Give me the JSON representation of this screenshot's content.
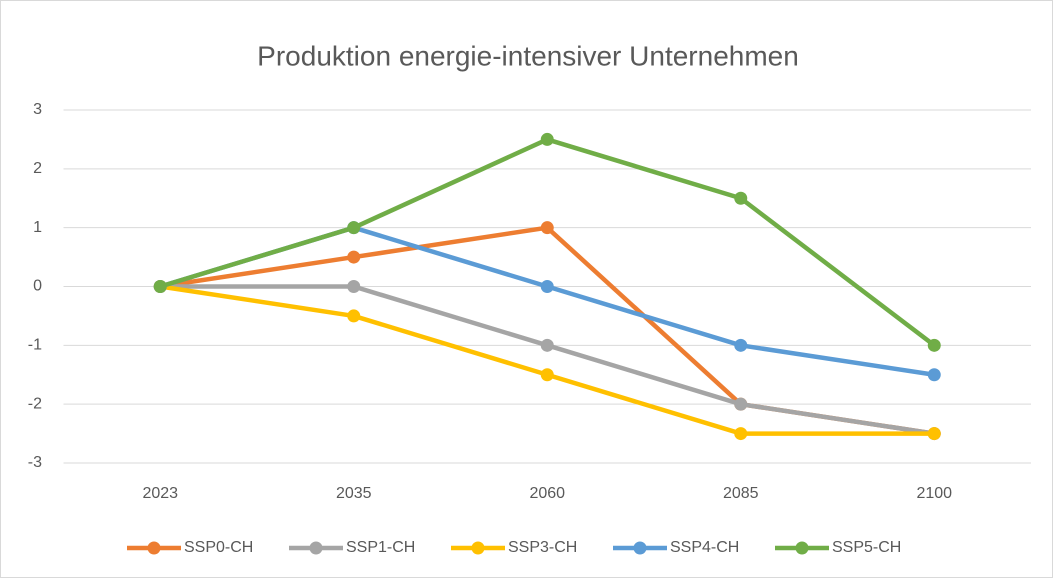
{
  "chart_data": {
    "type": "line",
    "title": "Produktion energie-intensiver Unternehmen",
    "categories": [
      "2023",
      "2035",
      "2060",
      "2085",
      "2100"
    ],
    "series": [
      {
        "name": "SSP0-CH",
        "color": "#ED7D31",
        "values": [
          0,
          0.5,
          1,
          -2,
          -2.5
        ]
      },
      {
        "name": "SSP1-CH",
        "color": "#A5A5A5",
        "values": [
          0,
          0,
          -1,
          -2,
          -2.5
        ]
      },
      {
        "name": "SSP3-CH",
        "color": "#FFC000",
        "values": [
          0,
          -0.5,
          -1.5,
          -2.5,
          -2.5
        ]
      },
      {
        "name": "SSP4-CH",
        "color": "#5B9BD5",
        "values": [
          0,
          1,
          0,
          -1,
          -1.5
        ]
      },
      {
        "name": "SSP5-CH",
        "color": "#70AD47",
        "values": [
          0,
          1,
          2.5,
          1.5,
          -1
        ]
      }
    ],
    "ylim": [
      -3,
      3
    ],
    "yticks": [
      -3,
      -2,
      -1,
      0,
      1,
      2,
      3
    ],
    "grid": true,
    "legend": "bottom"
  }
}
